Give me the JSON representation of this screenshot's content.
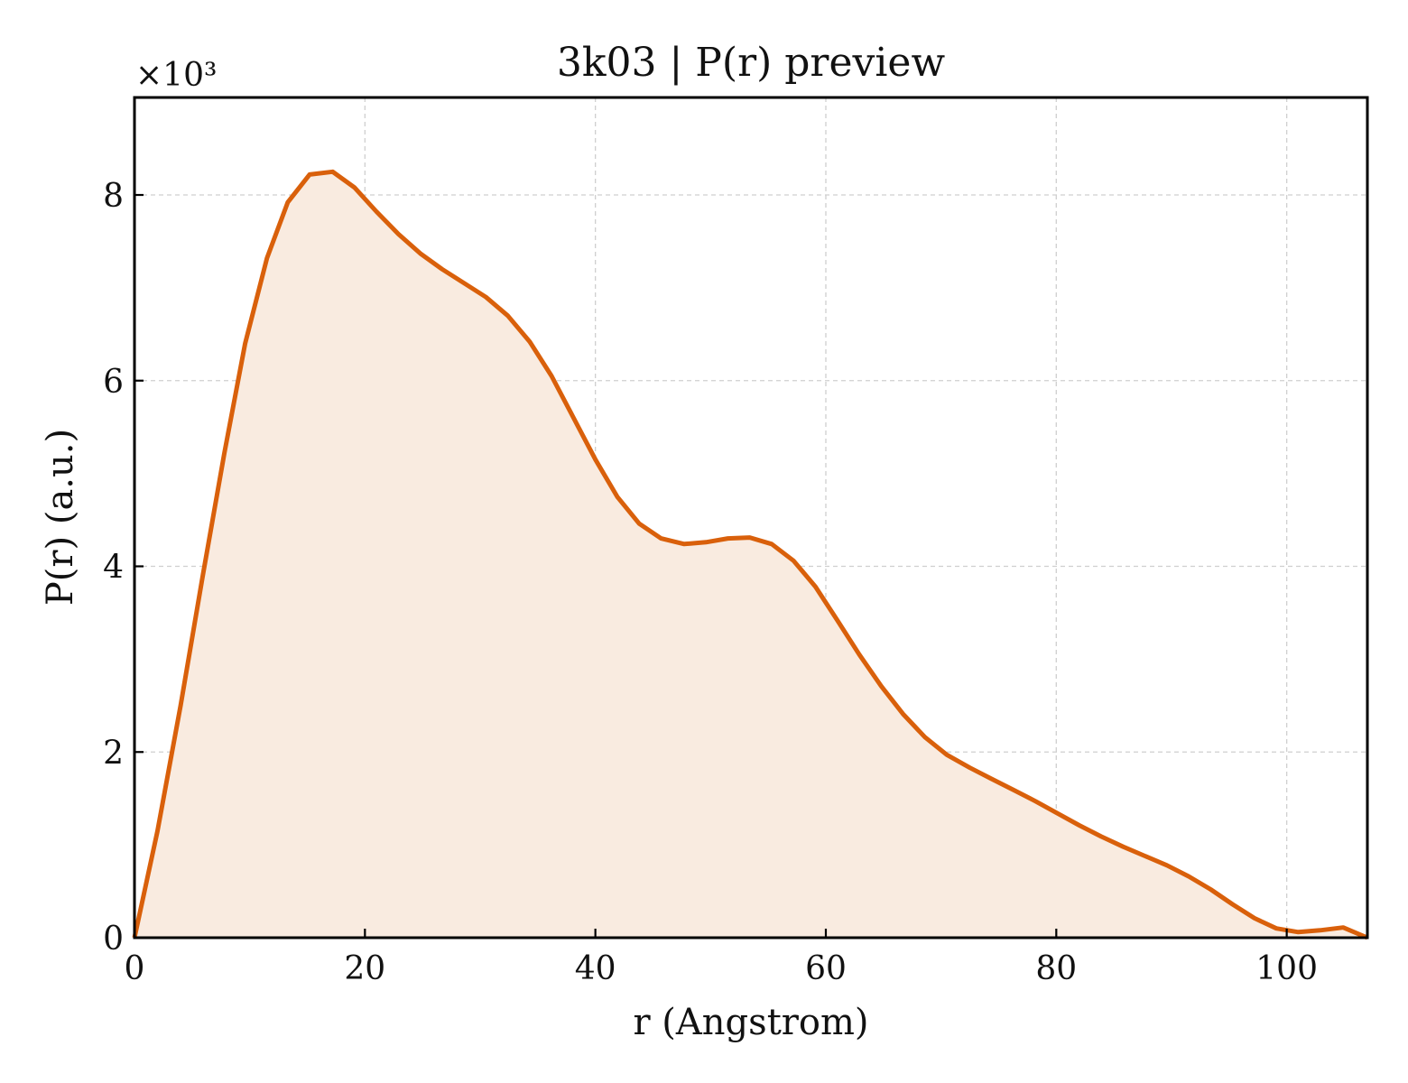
{
  "chart_data": {
    "type": "area",
    "title": "3k03 | P(r) preview",
    "xlabel": "r (Angstrom)",
    "ylabel": "P(r) (a.u.)",
    "y_multiplier_label": "×10³",
    "xlim": [
      0,
      107
    ],
    "ylim": [
      0,
      9.05
    ],
    "xticks": [
      0,
      20,
      40,
      60,
      80,
      100
    ],
    "yticks": [
      0,
      2,
      4,
      6,
      8
    ],
    "x_tick_labels": [
      "0",
      "20",
      "40",
      "60",
      "80",
      "100"
    ],
    "y_tick_labels": [
      "0",
      "2",
      "4",
      "6",
      "8"
    ],
    "grid": true,
    "line_color": "#d9600b",
    "fill_color": "#f9ebe0",
    "series": [
      {
        "x": [
          0,
          2,
          4,
          5.9,
          7.8,
          9.6,
          11.5,
          13.3,
          15.2,
          17.2,
          19.1,
          21,
          22.9,
          24.8,
          26.7,
          28.6,
          30.5,
          32.4,
          34.3,
          36.2,
          38.1,
          40,
          41.9,
          43.8,
          45.7,
          47.7,
          49.6,
          51.5,
          53.4,
          55.3,
          57.2,
          59.1,
          61,
          62.9,
          64.8,
          66.7,
          68.6,
          70.5,
          72.5,
          74.4,
          76.3,
          78.2,
          80.1,
          82,
          83.9,
          85.8,
          87.7,
          89.6,
          91.5,
          93.4,
          95.3,
          97.2,
          99.1,
          101,
          102.9,
          104.9,
          107
        ],
        "y": [
          0,
          1.15,
          2.5,
          3.88,
          5.22,
          6.4,
          7.32,
          7.92,
          8.22,
          8.25,
          8.08,
          7.82,
          7.58,
          7.37,
          7.2,
          7.05,
          6.9,
          6.7,
          6.42,
          6.05,
          5.6,
          5.15,
          4.75,
          4.46,
          4.3,
          4.24,
          4.26,
          4.3,
          4.31,
          4.24,
          4.06,
          3.78,
          3.42,
          3.05,
          2.71,
          2.41,
          2.16,
          1.97,
          1.83,
          1.71,
          1.59,
          1.47,
          1.34,
          1.21,
          1.09,
          0.98,
          0.88,
          0.78,
          0.66,
          0.52,
          0.36,
          0.21,
          0.1,
          0.06,
          0.08,
          0.11,
          0.0
        ]
      }
    ]
  }
}
